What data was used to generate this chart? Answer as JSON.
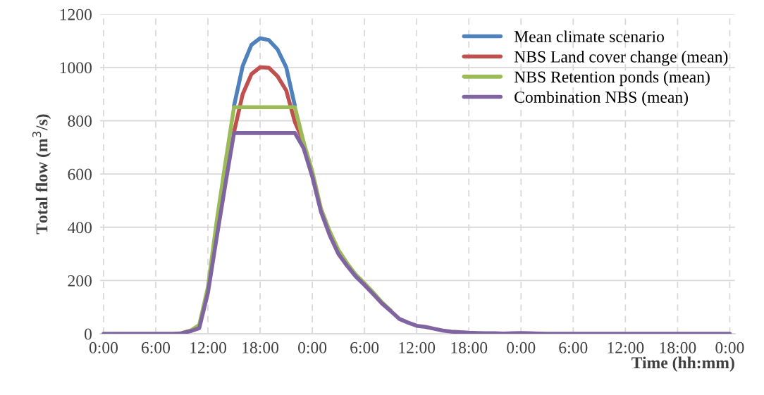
{
  "chart_data": {
    "type": "line",
    "xlabel": "Time (hh:mm)",
    "ylabel": "Total flow (m$^{3}$/s)",
    "categories": [
      "0:00",
      null,
      null,
      null,
      null,
      null,
      "6:00",
      null,
      null,
      null,
      null,
      null,
      "12:00",
      null,
      null,
      null,
      null,
      null,
      "18:00",
      null,
      null,
      null,
      null,
      null,
      "0:00",
      null,
      null,
      null,
      null,
      null,
      "6:00",
      null,
      null,
      null,
      null,
      null,
      "12:00",
      null,
      null,
      null,
      null,
      null,
      "18:00",
      null,
      null,
      null,
      null,
      null,
      "0:00",
      null,
      null,
      null,
      null,
      null,
      "6:00",
      null,
      null,
      null,
      null,
      null,
      "12:00",
      null,
      null,
      null,
      null,
      null,
      "18:00",
      null,
      null,
      null,
      null,
      null,
      "0:00"
    ],
    "series": [
      {
        "name": "Mean climate scenario",
        "color": "#4f81bd",
        "values": [
          null,
          null,
          null,
          null,
          null,
          null,
          null,
          null,
          null,
          null,
          null,
          null,
          null,
          null,
          null,
          856,
          1006,
          1085,
          1110,
          1103,
          1068,
          1001,
          856,
          null,
          null,
          null,
          null,
          null,
          null,
          null,
          null,
          null,
          null,
          null,
          null,
          null,
          null,
          null,
          null,
          null,
          null,
          null,
          null,
          null,
          null,
          null,
          null,
          null,
          null,
          null,
          null,
          null,
          null,
          null,
          null,
          null,
          null,
          null,
          null,
          null,
          null,
          null,
          null,
          null,
          null,
          null,
          null,
          null,
          null,
          null,
          null,
          null,
          null
        ]
      },
      {
        "name": "NBS Land cover change (mean)",
        "color": "#c0504d",
        "values": [
          null,
          null,
          null,
          null,
          null,
          null,
          null,
          null,
          null,
          null,
          null,
          null,
          null,
          null,
          null,
          758,
          900,
          975,
          1001,
          999,
          967,
          914,
          795,
          720,
          null,
          null,
          null,
          null,
          null,
          null,
          null,
          null,
          null,
          null,
          null,
          null,
          null,
          null,
          null,
          null,
          null,
          null,
          null,
          null,
          null,
          null,
          null,
          null,
          null,
          null,
          null,
          null,
          null,
          null,
          null,
          null,
          null,
          null,
          null,
          null,
          null,
          null,
          null,
          null,
          null,
          null,
          null,
          null,
          null,
          null,
          null,
          null,
          null
        ]
      },
      {
        "name": "NBS Retention ponds (mean)",
        "color": "#9bbb59",
        "values": [
          null,
          null,
          null,
          null,
          null,
          null,
          null,
          null,
          null,
          3,
          12,
          33,
          175,
          420,
          640,
          851,
          851,
          851,
          851,
          851,
          851,
          851,
          851,
          720,
          610,
          470,
          385,
          315,
          265,
          222,
          190,
          155,
          118,
          88,
          null,
          null,
          null,
          null,
          null,
          null,
          null,
          null,
          null,
          null,
          null,
          null,
          null,
          null,
          null,
          null,
          null,
          null,
          null,
          null,
          null,
          null,
          null,
          null,
          null,
          null,
          null,
          null,
          null,
          null,
          null,
          null,
          null,
          null,
          null,
          null,
          null,
          null,
          null
        ]
      },
      {
        "name": "Combination NBS (mean)",
        "color": "#8064a2",
        "values": [
          0,
          0,
          0,
          0,
          0,
          0,
          0,
          0,
          0,
          2,
          10,
          21,
          154,
          360,
          560,
          754,
          754,
          754,
          754,
          754,
          754,
          754,
          754,
          697,
          590,
          458,
          370,
          300,
          255,
          215,
          183,
          149,
          114,
          86,
          56,
          42,
          30,
          26,
          19,
          12,
          8,
          6,
          4,
          3,
          2,
          2,
          1,
          2,
          3,
          2,
          1,
          0,
          0,
          0,
          0,
          0,
          0,
          0,
          0,
          0,
          0,
          0,
          0,
          0,
          0,
          0,
          0,
          0,
          0,
          0,
          0,
          0,
          0
        ]
      }
    ],
    "ylim": [
      0,
      1200
    ],
    "yticks": [
      0,
      200,
      400,
      600,
      800,
      1000,
      1200
    ],
    "grid": true,
    "legend": "top right",
    "marker": "none",
    "line_style": "solid"
  }
}
